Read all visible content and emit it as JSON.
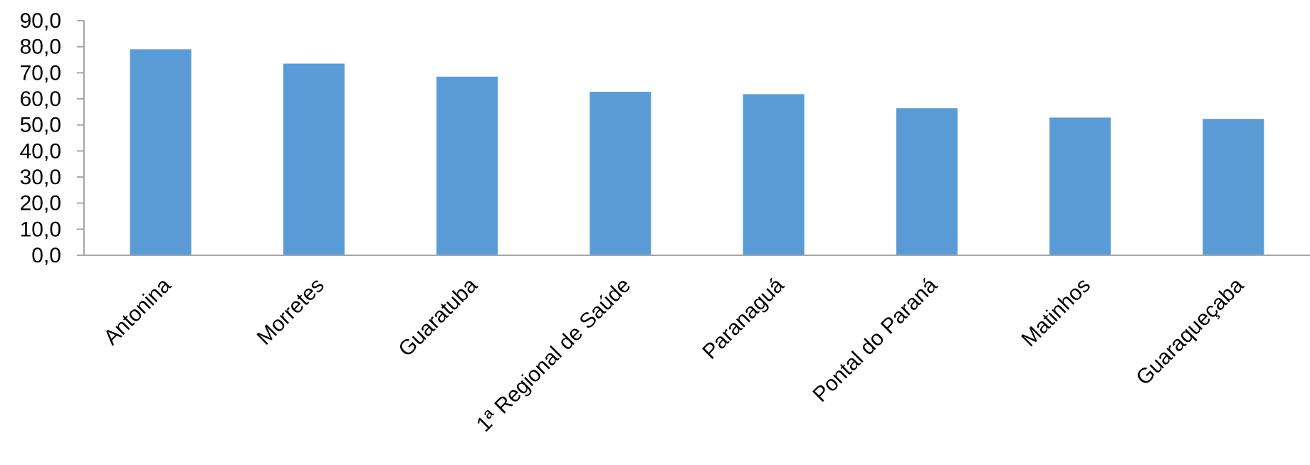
{
  "chart_data": {
    "type": "bar",
    "title": "",
    "xlabel": "",
    "ylabel": "",
    "categories": [
      "Antonina",
      "Morretes",
      "Guaratuba",
      "1ª Regional de Saúde",
      "Paranaguá",
      "Pontal do Paraná",
      "Matinhos",
      "Guaraqueçaba"
    ],
    "values": [
      79.0,
      73.5,
      68.5,
      62.7,
      61.8,
      56.4,
      52.8,
      52.3
    ],
    "ylim": [
      0,
      90
    ],
    "yticks": [
      0,
      10,
      20,
      30,
      40,
      50,
      60,
      70,
      80,
      90
    ],
    "ytick_labels": [
      "0,0",
      "10,0",
      "20,0",
      "30,0",
      "40,0",
      "50,0",
      "60,0",
      "70,0",
      "80,0",
      "90,0"
    ],
    "grid": false,
    "legend": "none",
    "colors": {
      "bar": "#5B9BD5",
      "axis": "#A6A6A6"
    }
  }
}
